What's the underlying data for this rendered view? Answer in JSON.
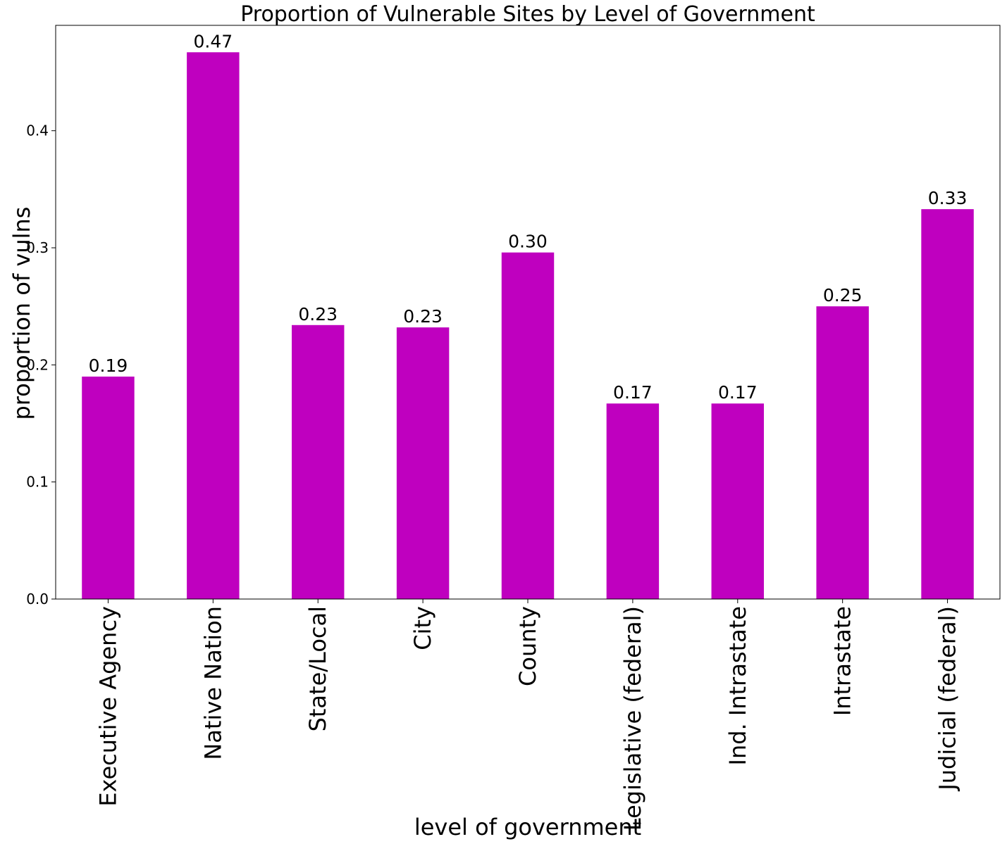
{
  "chart_data": {
    "type": "bar",
    "title": "Proportion of Vulnerable Sites by Level of Government",
    "xlabel": "level of government",
    "ylabel": "proportion of vulns",
    "categories": [
      "Executive Agency",
      "Native Nation",
      "State/Local",
      "City",
      "County",
      "Legislative (federal)",
      "Ind. Intrastate",
      "Intrastate",
      "Judicial (federal)"
    ],
    "values": [
      0.19,
      0.467,
      0.234,
      0.232,
      0.296,
      0.167,
      0.167,
      0.25,
      0.333
    ],
    "data_labels": [
      "0.19",
      "0.47",
      "0.23",
      "0.23",
      "0.30",
      "0.17",
      "0.17",
      "0.25",
      "0.33"
    ],
    "yticks": [
      0.0,
      0.1,
      0.2,
      0.3,
      0.4
    ],
    "ytick_labels": [
      "0.0",
      "0.1",
      "0.2",
      "0.3",
      "0.4"
    ],
    "ylim": [
      0,
      0.49
    ],
    "grid": false,
    "legend": "none",
    "bar_color": "#bf00bf"
  }
}
